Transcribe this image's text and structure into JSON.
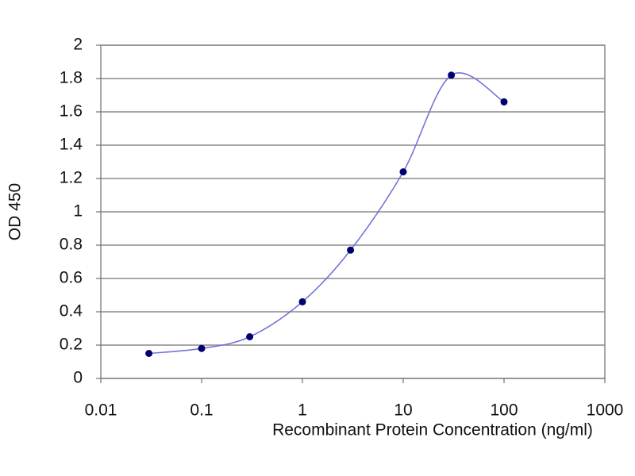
{
  "chart_data": {
    "type": "line",
    "x_label": "Recombinant Protein Concentration (ng/ml)",
    "y_label": "OD 450",
    "x": [
      0.03,
      0.1,
      0.3,
      1,
      3,
      10,
      30,
      100
    ],
    "series": [
      {
        "color": "#7474d8",
        "marker_color": "#000070",
        "values": [
          0.15,
          0.18,
          0.25,
          0.46,
          0.77,
          1.24,
          1.82,
          1.66
        ]
      }
    ],
    "xlim": [
      0.01,
      1000
    ],
    "xticks": [
      0.01,
      0.1,
      1,
      10,
      100,
      1000
    ],
    "xscale": "log",
    "ylim": [
      0,
      2
    ],
    "yticks": [
      0,
      0.2,
      0.4,
      0.6,
      0.8,
      1,
      1.2,
      1.4,
      1.6,
      1.8,
      2
    ],
    "grid": true
  }
}
